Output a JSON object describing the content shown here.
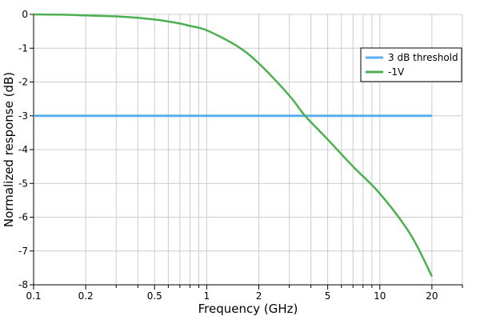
{
  "chart_data": {
    "type": "line",
    "title": "",
    "xlabel": "Frequency (GHz)",
    "ylabel": "Normalized response (dB)",
    "x_scale": "log",
    "xlim": [
      0.1,
      30
    ],
    "ylim": [
      -8,
      0
    ],
    "x_ticks": [
      0.1,
      0.2,
      0.5,
      1,
      2,
      5,
      10,
      20
    ],
    "x_tick_labels": [
      "0.1",
      "0.2",
      "0.5",
      "1",
      "2",
      "5",
      "10",
      "20"
    ],
    "y_ticks": [
      0,
      -1,
      -2,
      -3,
      -4,
      -5,
      -6,
      -7,
      -8
    ],
    "y_tick_labels": [
      "0",
      "-1",
      "-2",
      "-3",
      "-4",
      "-5",
      "-6",
      "-7",
      "-8"
    ],
    "grid": true,
    "legend_position": "top-right",
    "series": [
      {
        "name": "3 dB threshold",
        "color": "#5aaeee",
        "x": [
          0.1,
          20
        ],
        "y": [
          -3,
          -3
        ]
      },
      {
        "name": "-1V",
        "color": "#4caf50",
        "x": [
          0.1,
          0.15,
          0.2,
          0.3,
          0.4,
          0.5,
          0.6,
          0.7,
          0.8,
          1,
          1.5,
          2,
          3,
          3.7,
          5,
          7,
          10,
          15,
          20
        ],
        "y": [
          0,
          -0.01,
          -0.03,
          -0.06,
          -0.1,
          -0.15,
          -0.21,
          -0.27,
          -0.34,
          -0.47,
          -0.94,
          -1.45,
          -2.4,
          -3.0,
          -3.7,
          -4.5,
          -5.3,
          -6.5,
          -7.75
        ]
      }
    ]
  }
}
